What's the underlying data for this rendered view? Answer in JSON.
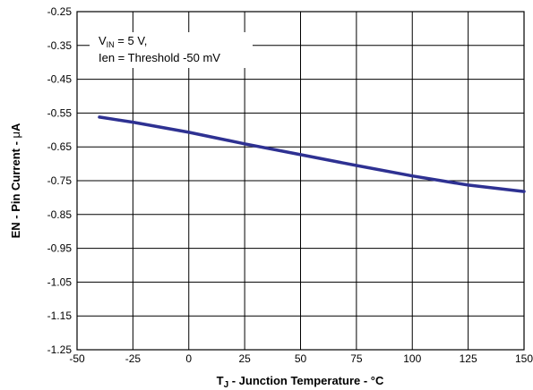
{
  "chart_data": {
    "type": "line",
    "xlabel": "T_J - Junction Temperature - °C",
    "xlabel_parts": {
      "t": "T",
      "t_sub": "J",
      "rest": " - Junction Temperature - °C"
    },
    "ylabel": "EN - Pin Current - μA",
    "ylabel_parts": {
      "prefix": "EN - Pin Current - ",
      "mu": "μ",
      "unit": "A"
    },
    "xlim": [
      -50,
      150
    ],
    "ylim": [
      -1.25,
      -0.25
    ],
    "x_ticks": [
      -50,
      -25,
      0,
      25,
      50,
      75,
      100,
      125,
      150
    ],
    "y_ticks": [
      -0.25,
      -0.35,
      -0.45,
      -0.55,
      -0.65,
      -0.75,
      -0.85,
      -0.95,
      -1.05,
      -1.15,
      -1.25
    ],
    "grid": true,
    "legend_box": {
      "line1_prefix": "V",
      "line1_sub": "IN",
      "line1_suffix": " = 5 V,",
      "line2": "Ien = Threshold -50 mV"
    },
    "series": [
      {
        "color": "#2e3192",
        "x": [
          -40,
          -25,
          0,
          25,
          50,
          75,
          100,
          125,
          150
        ],
        "y": [
          -0.562,
          -0.577,
          -0.607,
          -0.641,
          -0.673,
          -0.705,
          -0.736,
          -0.763,
          -0.782
        ]
      }
    ]
  }
}
